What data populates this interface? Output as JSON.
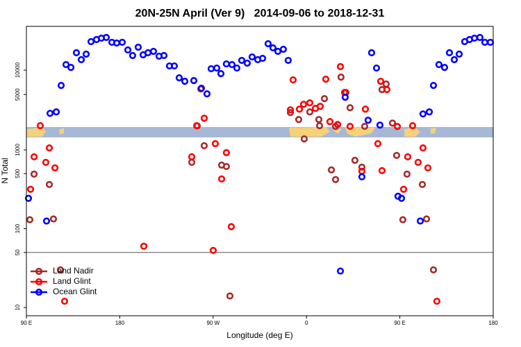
{
  "chart_data": {
    "type": "scatter",
    "title": "20N-25N April (Ver 9)   2014-09-06 to 2018-12-31",
    "x_label": "Longitude (deg E)",
    "y_label": "N Total",
    "xlim": [
      90,
      540
    ],
    "xticks": [
      {
        "value": 90,
        "label": "90 E"
      },
      180,
      {
        "value": 270,
        "label": "90 W"
      },
      {
        "value": 360,
        "label": "0"
      },
      {
        "value": 450,
        "label": "90 E"
      },
      {
        "value": 540,
        "label": "180"
      }
    ],
    "yscale": "log",
    "ylim": [
      7.85,
      1440
    ],
    "yticks": [
      10,
      50,
      100,
      500,
      1000
    ],
    "y2scale": "sqrt",
    "y2lim": [
      1000,
      23300
    ],
    "y2ticks": [
      5000,
      10000
    ],
    "hline": 50,
    "legend": "bottom-left",
    "series": [
      {
        "name": "Land Nadir",
        "color": "#a52a2a",
        "x": [
          93.3,
          97.4,
          112.1,
          116.1,
          122.8,
          249.4,
          261.4,
          278.2,
          282.8,
          286.2,
          357.8,
          384.0,
          388.0,
          406.7,
          413.4,
          446.9,
          452.9,
          456.9,
          471.7,
          475.7,
          482.4
        ],
        "values": [
          130,
          493,
          364,
          133,
          30,
          695,
          1130,
          641,
          615,
          14,
          1380,
          557,
          420,
          738,
          604,
          851,
          130,
          493,
          364,
          133,
          30
        ]
      },
      {
        "name": "Land Glint",
        "color": "#ff0000",
        "x": [
          94.0,
          97.4,
          108.7,
          112.1,
          117.5,
          126.8,
          203.2,
          249.4,
          270.1,
          272.1,
          278.2,
          282.8,
          287.5,
          413.4,
          428.8,
          432.8,
          453.6,
          457.6,
          467.6,
          472.3,
          477.0,
          485.7
        ],
        "values": [
          316,
          817,
          695,
          1060,
          591,
          12,
          60,
          817,
          53,
          1200,
          428,
          922,
          106,
          535,
          1200,
          546,
          316,
          817,
          695,
          1060,
          591,
          12
        ]
      },
      {
        "name": "Ocean Glint",
        "color": "#0000ff",
        "x": [
          92.0,
          109.4,
          392.7,
          413.4,
          448.2,
          451.6,
          469.7
        ],
        "values": [
          243,
          125,
          29,
          455,
          258,
          243,
          125
        ]
      },
      {
        "color": "#a52a2a",
        "axis": "y2",
        "x": [
          254.7,
          344.5,
          352.5,
          363.2,
          371.9,
          372.6,
          377.3,
          388.0,
          393.3,
          398.0,
          402.0,
          416.1,
          432.8,
          436.8,
          442.9
        ],
        "values": [
          1090,
          2400,
          1650,
          2480,
          1650,
          1100,
          4320,
          1040,
          8390,
          5360,
          3000,
          1050,
          5870,
          6940,
          1320
        ]
      },
      {
        "color": "#ff0000",
        "axis": "y2",
        "x": [
          103.4,
          254.1,
          258.1,
          261.4,
          344.5,
          347.1,
          353.2,
          357.2,
          363.2,
          368.6,
          373.2,
          378.6,
          382.6,
          390.0,
          392.7,
          396.7,
          402.0,
          416.8,
          431.5,
          437.5,
          447.6,
          462.3
        ],
        "values": [
          1100,
          1100,
          5990,
          1780,
          2740,
          7800,
          2820,
          3480,
          3680,
          2920,
          3190,
          7940,
          1450,
          1200,
          10860,
          5360,
          1050,
          2820,
          7500,
          5870,
          1040,
          1100
        ]
      },
      {
        "color": "#0000ff",
        "axis": "y2",
        "x": [
          112.8,
          118.8,
          123.5,
          128.2,
          132.9,
          138.2,
          142.9,
          147.6,
          152.3,
          157.6,
          162.3,
          167.0,
          172.4,
          177.0,
          182.4,
          187.8,
          192.4,
          197.8,
          202.5,
          207.2,
          212.5,
          217.9,
          222.6,
          227.9,
          232.6,
          237.3,
          242.7,
          251.4,
          258.7,
          264.1,
          268.1,
          273.5,
          277.5,
          282.8,
          288.2,
          292.9,
          297.6,
          302.9,
          307.6,
          313.0,
          317.7,
          323.0,
          327.7,
          332.4,
          337.7,
          342.4,
          397.3,
          419.4,
          422.8,
          427.5,
          430.8,
          472.3,
          478.4,
          482.4,
          487.7,
          493.1,
          497.8,
          502.5,
          507.2,
          512.5,
          517.2,
          521.9,
          527.2,
          531.9,
          537.3
        ],
        "values": [
          2310,
          2480,
          6660,
          11380,
          10670,
          14620,
          12680,
          14230,
          18040,
          18710,
          19180,
          19400,
          17820,
          17580,
          17820,
          15450,
          13830,
          16280,
          14020,
          14620,
          15030,
          13620,
          13830,
          11030,
          11030,
          8240,
          7500,
          7640,
          6120,
          5110,
          10340,
          10510,
          9180,
          11560,
          11380,
          10510,
          12480,
          11750,
          13430,
          12680,
          13040,
          17370,
          16080,
          15030,
          15650,
          12480,
          4540,
          1580,
          14620,
          10510,
          1150,
          2240,
          2480,
          6660,
          11380,
          10670,
          14620,
          12680,
          14230,
          18040,
          18710,
          19180,
          19400,
          17820,
          17820
        ]
      }
    ]
  }
}
